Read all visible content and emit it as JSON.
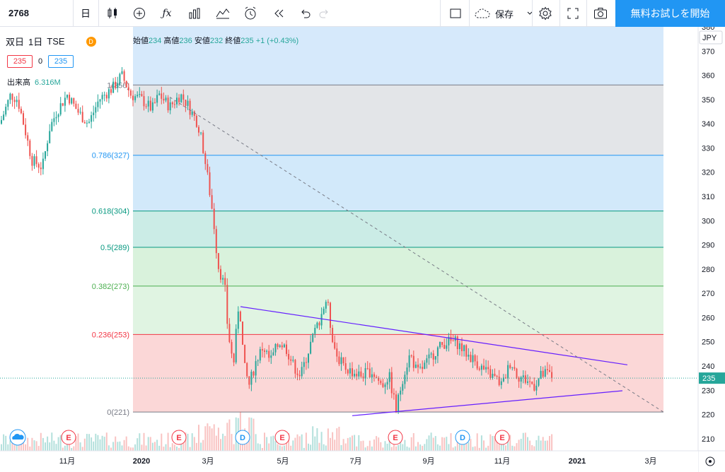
{
  "toolbar": {
    "symbol": "2768",
    "interval": "日",
    "save_label": "保存",
    "cta_label": "無料お試しを開始"
  },
  "legend": {
    "name": "双日",
    "interval": "1日",
    "exchange": "TSE",
    "open_label": "始値",
    "open": "234",
    "high_label": "高値",
    "high": "236",
    "low_label": "安値",
    "low": "232",
    "close_label": "終値",
    "close": "235",
    "change": "+1 (+0.43%)",
    "price_box_1": "235",
    "price_box_mid": "0",
    "price_box_2": "235",
    "volume_label": "出来高",
    "volume_value": "6.316M",
    "badge": "D"
  },
  "axis": {
    "currency": "JPY",
    "current_price": "235"
  },
  "chart_data": {
    "type": "candlestick",
    "ylim": [
      205,
      380
    ],
    "y_ticks": [
      210,
      220,
      230,
      240,
      250,
      260,
      270,
      280,
      290,
      300,
      310,
      320,
      330,
      340,
      350,
      360,
      370,
      380
    ],
    "x_labels": [
      "11月",
      "2020",
      "3月",
      "5月",
      "7月",
      "9月",
      "11月",
      "2021",
      "3月"
    ],
    "fib_levels": [
      {
        "label": "1(356)",
        "value": 356,
        "color": "#787b86"
      },
      {
        "label": "0.786(327)",
        "value": 327,
        "color": "#2196f3"
      },
      {
        "label": "0.618(304)",
        "value": 304,
        "color": "#089981"
      },
      {
        "label": "0.5(289)",
        "value": 289,
        "color": "#089981"
      },
      {
        "label": "0.382(273)",
        "value": 273,
        "color": "#4caf50"
      },
      {
        "label": "0.236(253)",
        "value": 253,
        "color": "#f23645"
      },
      {
        "label": "0(221)",
        "value": 221,
        "color": "#787b86"
      }
    ],
    "events": [
      "E",
      "E",
      "D",
      "E",
      "E",
      "D",
      "E"
    ]
  }
}
